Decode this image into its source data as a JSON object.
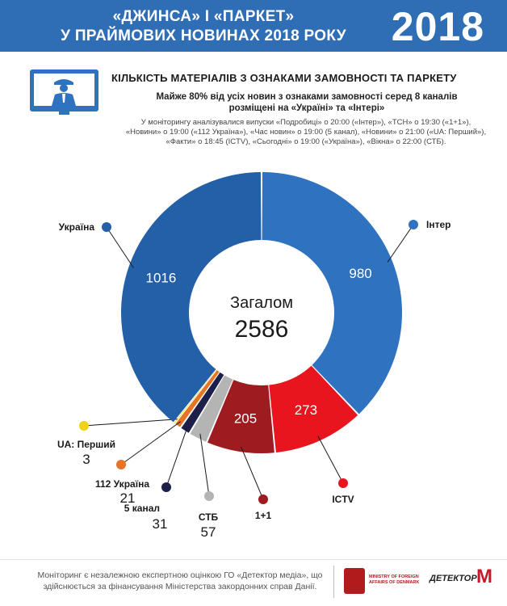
{
  "header": {
    "title_line1": "«ДЖИНСА» І «ПАРКЕТ»",
    "title_line2": "У ПРАЙМОВИХ НОВИНАХ 2018 РОКУ",
    "year": "2018"
  },
  "section_title": "КІЛЬКІСТЬ МАТЕРІАЛІВ З ОЗНАКАМИ ЗАМОВНОСТІ ТА ПАРКЕТУ",
  "subtitle_line1": "Майже 80% від усіх новин з ознаками замовності серед 8 каналів",
  "subtitle_line2": "розміщені на «Україні» та «Інтері»",
  "note_line1": "У моніторингу аналізувалися випуски «Подробиці» о 20:00 («Інтер»), «ТСН» о 19:30 («1+1»),",
  "note_line2": "«Новини» о 19:00 («112 Україна»), «Час новин» о 19:00 (5 канал), «Новини» о 21:00 («UA: Перший»),",
  "note_line3": "«Факти» о 18:45 (ICTV), «Сьогодні» о 19:00 («Україна»), «Вікна» о 22:00 (СТБ).",
  "chart_data": {
    "type": "pie",
    "center_label": "Загалом",
    "total": "2586",
    "slices": [
      {
        "label": "Інтер",
        "value": 980,
        "value_text": "980",
        "color": "#2f72bf"
      },
      {
        "label": "ICTV",
        "value": 273,
        "value_text": "273",
        "color": "#e8151f"
      },
      {
        "label": "1+1",
        "value": 205,
        "value_text": "205",
        "color": "#9e1b20"
      },
      {
        "label": "СТБ",
        "value": 57,
        "value_text": "57",
        "color": "#b4b4b4"
      },
      {
        "label": "5 канал",
        "value": 31,
        "value_text": "31",
        "color": "#1c1f4a"
      },
      {
        "label": "112 Україна",
        "value": 21,
        "value_text": "21",
        "color": "#e57424"
      },
      {
        "label": "UA: Перший",
        "value": 3,
        "value_text": "3",
        "color": "#f0d21b"
      },
      {
        "label": "Україна",
        "value": 1016,
        "value_text": "1016",
        "color": "#2460a7"
      }
    ]
  },
  "footer": {
    "text_line1": "Моніторинг є незалежною експертною оцінкою ГО «Детектор медіа», що",
    "text_line2": "здійснюється за фінансування Міністерства закордонних справ Данії.",
    "ministry": "MINISTRY OF FOREIGN AFFAIRS OF DENMARK",
    "detector": "ДЕТЕКТОР",
    "detector_mark": "M"
  }
}
